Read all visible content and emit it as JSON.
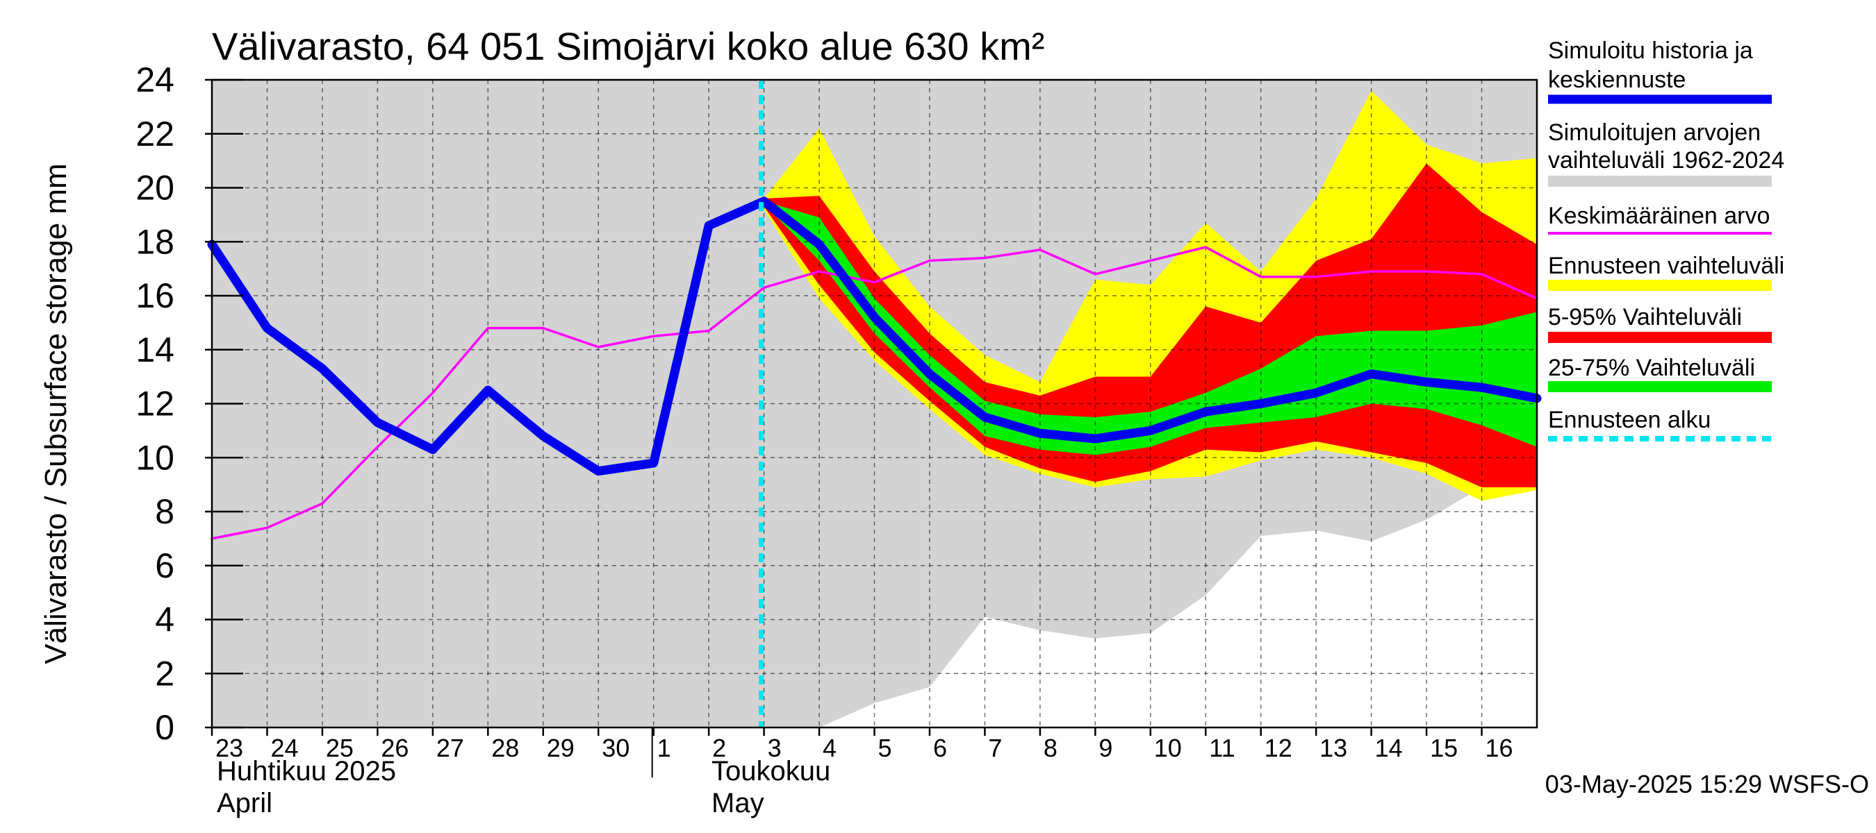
{
  "chart_data": {
    "type": "area",
    "title": "Välivarasto, 64 051 Simojärvi koko alue 630 km²",
    "ylabel": "Välivarasto / Subsurface storage  mm",
    "ylim": [
      0,
      24
    ],
    "yticks": [
      "0",
      "2",
      "4",
      "6",
      "8",
      "10",
      "12",
      "14",
      "16",
      "18",
      "20",
      "22",
      "24"
    ],
    "x_start_day": 23,
    "x_end_day": 47,
    "xtick_labels": [
      "23",
      "24",
      "25",
      "26",
      "27",
      "28",
      "29",
      "30",
      "1",
      "2",
      "3",
      "4",
      "5",
      "6",
      "7",
      "8",
      "9",
      "10",
      "11",
      "12",
      "13",
      "14",
      "15",
      "16"
    ],
    "month_labels": {
      "april_fi": "Huhtikuu  2025",
      "april_en": "April",
      "may_fi": "Toukokuu",
      "may_en": "May"
    },
    "forecast_start": 33,
    "days": [
      23,
      24,
      25,
      26,
      27,
      28,
      29,
      30,
      31,
      32,
      33,
      34,
      35,
      36,
      37,
      38,
      39,
      40,
      41,
      42,
      43,
      44,
      45,
      46,
      47
    ],
    "series": [
      {
        "name": "Simuloitujen arvojen vaihteluväli 1962-2024 (upper)",
        "color": "#d3d3d3",
        "values": [
          24,
          24,
          24,
          24,
          24,
          24,
          24,
          24,
          24,
          24,
          24,
          24,
          24,
          24,
          24,
          24,
          24,
          24,
          24,
          24,
          24,
          24,
          24,
          24,
          24
        ]
      },
      {
        "name": "Simuloitujen arvojen vaihteluväli 1962-2024 (lower)",
        "color": "#d3d3d3",
        "values": [
          0,
          0,
          0,
          0,
          0,
          0,
          0,
          0,
          0,
          0,
          0,
          0,
          0.9,
          1.5,
          4.1,
          3.6,
          3.3,
          3.5,
          4.9,
          7.1,
          7.3,
          6.9,
          7.7,
          8.9,
          9.0
        ]
      },
      {
        "name": "Ennusteen vaihteluväli (upper)",
        "color": "#ffff00",
        "values": [
          null,
          null,
          null,
          null,
          null,
          null,
          null,
          null,
          null,
          null,
          19.6,
          22.2,
          18.2,
          15.6,
          13.8,
          12.8,
          16.6,
          16.4,
          18.7,
          16.9,
          19.6,
          23.6,
          21.6,
          20.9,
          21.1
        ]
      },
      {
        "name": "Ennusteen vaihteluväli (lower)",
        "color": "#ffff00",
        "values": [
          null,
          null,
          null,
          null,
          null,
          null,
          null,
          null,
          null,
          null,
          19.2,
          15.9,
          13.6,
          11.8,
          10.1,
          9.4,
          8.9,
          9.2,
          9.3,
          9.9,
          10.3,
          10.0,
          9.4,
          8.4,
          8.8
        ]
      },
      {
        "name": "5-95% Vaihteluväli (upper)",
        "color": "#ff0000",
        "values": [
          null,
          null,
          null,
          null,
          null,
          null,
          null,
          null,
          null,
          null,
          19.6,
          19.7,
          16.9,
          14.6,
          12.8,
          12.3,
          13.0,
          13.0,
          15.6,
          15.0,
          17.3,
          18.1,
          20.9,
          19.1,
          17.9
        ]
      },
      {
        "name": "5-95% Vaihteluväli (lower)",
        "color": "#ff0000",
        "values": [
          null,
          null,
          null,
          null,
          null,
          null,
          null,
          null,
          null,
          null,
          19.3,
          16.4,
          13.9,
          12.1,
          10.4,
          9.6,
          9.1,
          9.5,
          10.3,
          10.2,
          10.6,
          10.2,
          9.8,
          8.9,
          8.9
        ]
      },
      {
        "name": "25-75% Vaihteluväli (upper)",
        "color": "#00ee00",
        "values": [
          null,
          null,
          null,
          null,
          null,
          null,
          null,
          null,
          null,
          null,
          19.5,
          18.9,
          15.9,
          13.8,
          12.1,
          11.6,
          11.5,
          11.7,
          12.4,
          13.3,
          14.5,
          14.7,
          14.7,
          14.9,
          15.4
        ]
      },
      {
        "name": "25-75% Vaihteluväli (lower)",
        "color": "#00ee00",
        "values": [
          null,
          null,
          null,
          null,
          null,
          null,
          null,
          null,
          null,
          null,
          19.4,
          17.3,
          14.6,
          12.6,
          10.8,
          10.3,
          10.1,
          10.4,
          11.1,
          11.3,
          11.5,
          12.0,
          11.8,
          11.2,
          10.4
        ]
      },
      {
        "name": "Keskimääräinen arvo",
        "color": "#ff00ff",
        "values": [
          7.0,
          7.4,
          8.3,
          10.4,
          12.4,
          14.8,
          14.8,
          14.1,
          14.5,
          14.7,
          16.3,
          16.9,
          16.5,
          17.3,
          17.4,
          17.7,
          16.8,
          17.3,
          17.8,
          16.7,
          16.7,
          16.9,
          16.9,
          16.8,
          15.9
        ]
      },
      {
        "name": "Simuloitu historia ja keskiennuste",
        "color": "#0000ee",
        "values": [
          17.9,
          14.8,
          13.3,
          11.3,
          10.3,
          12.5,
          10.8,
          9.5,
          9.8,
          18.6,
          19.5,
          17.9,
          15.2,
          13.1,
          11.5,
          10.9,
          10.7,
          11.0,
          11.7,
          12.0,
          12.4,
          13.1,
          12.8,
          12.6,
          12.2
        ]
      }
    ]
  },
  "legend": [
    {
      "key": "hist",
      "lines": [
        "Simuloitu historia ja",
        "keskiennuste"
      ],
      "color": "#0000ee",
      "style": "thick"
    },
    {
      "key": "range",
      "lines": [
        "Simuloitujen arvojen",
        "vaihteluväli 1962-2024"
      ],
      "color": "#d3d3d3",
      "style": "band"
    },
    {
      "key": "mean",
      "lines": [
        "Keskimääräinen arvo"
      ],
      "color": "#ff00ff",
      "style": "thin"
    },
    {
      "key": "fc",
      "lines": [
        "Ennusteen vaihteluväli"
      ],
      "color": "#ffff00",
      "style": "band"
    },
    {
      "key": "p595",
      "lines": [
        "5-95% Vaihteluväli"
      ],
      "color": "#ff0000",
      "style": "band"
    },
    {
      "key": "p2575",
      "lines": [
        "25-75% Vaihteluväli"
      ],
      "color": "#00ee00",
      "style": "band"
    },
    {
      "key": "start",
      "lines": [
        "Ennusteen alku"
      ],
      "color": "#00e5ee",
      "style": "dashed"
    }
  ],
  "footer": "03-May-2025 15:29 WSFS-O"
}
